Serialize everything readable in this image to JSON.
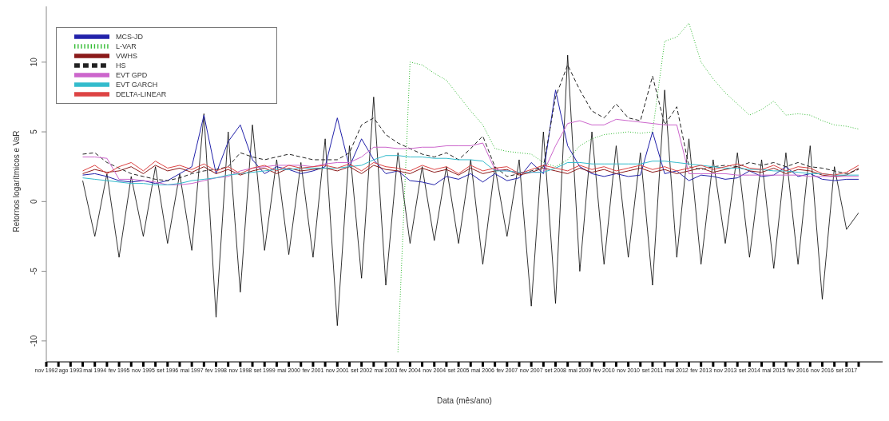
{
  "chart_data": {
    "type": "line",
    "xlabel": "Data (mês/ano)",
    "ylabel": "Retornos logarítmicos e VaR",
    "categories": [
      "nov 1992",
      null,
      "ago 1993",
      null,
      "mai 1994",
      null,
      "fev 1995",
      null,
      "nov 1995",
      null,
      "set 1996",
      null,
      "mai 1997",
      null,
      "fev 1998",
      null,
      "nov 1998",
      null,
      "set 1999",
      null,
      "mai 2000",
      null,
      "fev 2001",
      null,
      "nov 2001",
      null,
      "set 2002",
      null,
      "mai 2003",
      null,
      "fev 2004",
      null,
      "nov 2004",
      null,
      "set 2005",
      null,
      "mai 2006",
      null,
      "fev 2007",
      null,
      "nov 2007",
      null,
      "set 2008",
      null,
      "mai 2009",
      null,
      "fev 2010",
      null,
      "nov 2010",
      null,
      "set 2011",
      null,
      "mai 2012",
      null,
      "fev 2013",
      null,
      "nov 2013",
      null,
      "set 2014",
      null,
      "mai 2015",
      null,
      "fev 2016",
      null,
      "nov 2016",
      null,
      "set 2017",
      null
    ],
    "ylim": [
      -11.5,
      14
    ],
    "yticks": [
      -10,
      -5,
      0,
      5,
      10
    ],
    "grid": false,
    "legend": "top left",
    "marker": "none",
    "series": [
      {
        "color": "#000000",
        "values": [
          null,
          null,
          null,
          1.5,
          -2.5,
          2.0,
          -4.0,
          1.8,
          -2.5,
          2.5,
          -3.0,
          2.0,
          -3.5,
          6.3,
          -8.3,
          5.0,
          -6.5,
          5.5,
          -3.5,
          3.0,
          -3.8,
          2.8,
          -4.0,
          4.5,
          -8.9,
          4.0,
          -5.5,
          7.5,
          -6.0,
          3.5,
          -3.0,
          2.5,
          -2.8,
          2.5,
          -3.0,
          3.0,
          -4.5,
          2.5,
          -2.5,
          3.0,
          -7.5,
          5.0,
          -7.3,
          10.5,
          -5.0,
          5.0,
          -4.5,
          4.0,
          -4.0,
          3.5,
          -6.0,
          8.0,
          -4.0,
          4.5,
          -4.5,
          3.0,
          -3.0,
          3.5,
          -4.0,
          3.0,
          -4.8,
          3.5,
          -4.5,
          4.0,
          -7.0,
          2.5,
          -2.0,
          -0.8
        ]
      },
      {
        "name": "MCS-JD",
        "color": "#2222aa",
        "values": [
          null,
          null,
          null,
          1.9,
          2.0,
          1.8,
          1.5,
          1.4,
          1.5,
          1.3,
          1.5,
          2.0,
          2.5,
          6.2,
          2.0,
          4.3,
          5.5,
          3.0,
          2.0,
          2.5,
          2.3,
          2.0,
          2.2,
          2.5,
          6.0,
          2.5,
          4.5,
          3.0,
          2.0,
          2.2,
          1.5,
          1.4,
          1.2,
          1.8,
          1.6,
          2.0,
          1.4,
          2.0,
          1.5,
          1.7,
          2.8,
          2.0,
          8.0,
          4.0,
          2.5,
          2.0,
          1.8,
          2.0,
          1.8,
          1.9,
          5.0,
          2.0,
          2.2,
          1.5,
          1.9,
          1.8,
          1.6,
          1.7,
          2.2,
          1.8,
          1.9,
          2.5,
          1.8,
          2.0,
          1.6,
          1.5,
          1.6,
          1.6
        ]
      },
      {
        "name": "L-VAR",
        "color": "#33bb33",
        "line_style": "dotted",
        "values": [
          null,
          null,
          null,
          null,
          null,
          null,
          null,
          null,
          null,
          null,
          null,
          null,
          null,
          null,
          null,
          null,
          null,
          null,
          null,
          null,
          null,
          null,
          null,
          null,
          null,
          null,
          null,
          null,
          null,
          -10.8,
          10.0,
          9.8,
          9.2,
          8.7,
          7.6,
          6.5,
          5.5,
          3.8,
          3.6,
          3.5,
          3.4,
          2.8,
          2.5,
          3.0,
          4.0,
          4.5,
          4.8,
          4.9,
          5.0,
          4.9,
          5.0,
          11.5,
          11.8,
          12.8,
          10.0,
          8.8,
          7.8,
          7.0,
          6.2,
          6.6,
          7.2,
          6.2,
          6.3,
          6.2,
          5.8,
          5.5,
          5.4,
          5.2
        ]
      },
      {
        "name": "VWHS",
        "color": "#8b1a1a",
        "values": [
          null,
          null,
          null,
          2.0,
          2.3,
          2.1,
          2.2,
          2.5,
          2.0,
          2.6,
          2.2,
          2.4,
          2.1,
          2.5,
          2.0,
          2.3,
          1.9,
          2.2,
          2.4,
          2.0,
          2.4,
          2.2,
          2.3,
          2.4,
          2.2,
          2.5,
          2.0,
          2.6,
          2.3,
          2.2,
          2.0,
          2.4,
          2.1,
          2.3,
          1.9,
          2.4,
          2.0,
          2.2,
          2.3,
          1.9,
          2.1,
          2.4,
          2.2,
          2.0,
          2.4,
          2.1,
          2.3,
          2.0,
          2.2,
          2.4,
          2.1,
          2.3,
          2.0,
          2.2,
          2.4,
          2.1,
          2.3,
          2.5,
          2.2,
          2.1,
          2.4,
          2.0,
          2.3,
          2.2,
          1.9,
          1.8,
          1.9,
          2.4
        ]
      },
      {
        "name": "HS",
        "color": "#222222",
        "line_style": "dashed",
        "values": [
          null,
          null,
          null,
          3.4,
          3.5,
          2.8,
          2.4,
          2.0,
          1.8,
          1.6,
          1.5,
          1.7,
          2.0,
          2.2,
          2.3,
          2.5,
          3.5,
          3.2,
          3.0,
          3.2,
          3.4,
          3.2,
          3.0,
          3.0,
          3.0,
          3.5,
          5.5,
          6.0,
          4.8,
          4.2,
          3.8,
          3.4,
          3.2,
          3.5,
          3.0,
          3.8,
          4.7,
          2.5,
          1.8,
          2.0,
          2.2,
          2.5,
          7.5,
          9.8,
          8.0,
          6.5,
          6.0,
          7.0,
          6.0,
          5.8,
          9.0,
          5.5,
          6.8,
          2.5,
          2.3,
          2.5,
          2.6,
          2.5,
          2.8,
          2.6,
          2.8,
          2.5,
          2.8,
          2.5,
          2.4,
          2.2,
          2.0,
          2.3
        ]
      },
      {
        "name": "EVT GPD",
        "color": "#cc66cc",
        "values": [
          null,
          null,
          null,
          3.2,
          3.2,
          3.1,
          1.6,
          1.6,
          1.5,
          1.4,
          1.2,
          1.2,
          1.3,
          1.5,
          1.7,
          1.8,
          2.2,
          2.4,
          2.5,
          2.6,
          2.6,
          2.6,
          2.5,
          2.7,
          2.8,
          2.8,
          3.2,
          3.9,
          3.9,
          3.8,
          3.8,
          3.9,
          3.9,
          4.0,
          4.0,
          4.0,
          4.2,
          2.3,
          2.2,
          2.1,
          2.1,
          2.1,
          4.0,
          5.6,
          5.8,
          5.5,
          5.5,
          5.9,
          5.8,
          5.7,
          5.6,
          5.5,
          5.5,
          2.0,
          2.0,
          2.0,
          2.0,
          1.9,
          1.9,
          1.9,
          1.9,
          1.9,
          1.9,
          1.8,
          1.8,
          1.8,
          1.8,
          1.8
        ]
      },
      {
        "name": "EVT GARCH",
        "color": "#33bbcc",
        "values": [
          null,
          null,
          null,
          1.7,
          1.6,
          1.5,
          1.4,
          1.3,
          1.3,
          1.2,
          1.2,
          1.3,
          1.5,
          1.6,
          1.7,
          1.9,
          2.0,
          2.1,
          2.2,
          2.3,
          2.3,
          2.4,
          2.4,
          2.4,
          2.4,
          2.5,
          2.6,
          3.0,
          3.3,
          3.3,
          3.2,
          3.2,
          3.1,
          3.1,
          3.0,
          3.0,
          2.9,
          2.2,
          2.2,
          2.1,
          2.1,
          2.1,
          2.4,
          2.8,
          2.8,
          2.7,
          2.7,
          2.7,
          2.7,
          2.7,
          2.9,
          2.9,
          2.8,
          2.7,
          2.6,
          2.5,
          2.4,
          2.4,
          2.3,
          2.3,
          2.2,
          2.2,
          2.1,
          2.0,
          2.0,
          1.9,
          1.9,
          1.9
        ]
      },
      {
        "name": "DELTA-LINEAR",
        "color": "#dd4444",
        "values": [
          null,
          null,
          null,
          2.2,
          2.6,
          2.0,
          2.5,
          2.8,
          2.2,
          2.9,
          2.4,
          2.6,
          2.3,
          2.7,
          2.2,
          2.5,
          2.0,
          2.4,
          2.6,
          2.2,
          2.6,
          2.4,
          2.5,
          2.6,
          2.4,
          2.7,
          2.2,
          2.8,
          2.5,
          2.4,
          2.2,
          2.6,
          2.3,
          2.5,
          2.0,
          2.6,
          2.2,
          2.4,
          2.5,
          2.0,
          2.3,
          2.6,
          2.4,
          2.2,
          2.6,
          2.3,
          2.5,
          2.2,
          2.4,
          2.6,
          2.3,
          2.5,
          2.2,
          2.4,
          2.6,
          2.3,
          2.5,
          2.7,
          2.4,
          2.3,
          2.6,
          2.2,
          2.5,
          2.4,
          2.0,
          1.9,
          2.1,
          2.6
        ]
      }
    ]
  }
}
